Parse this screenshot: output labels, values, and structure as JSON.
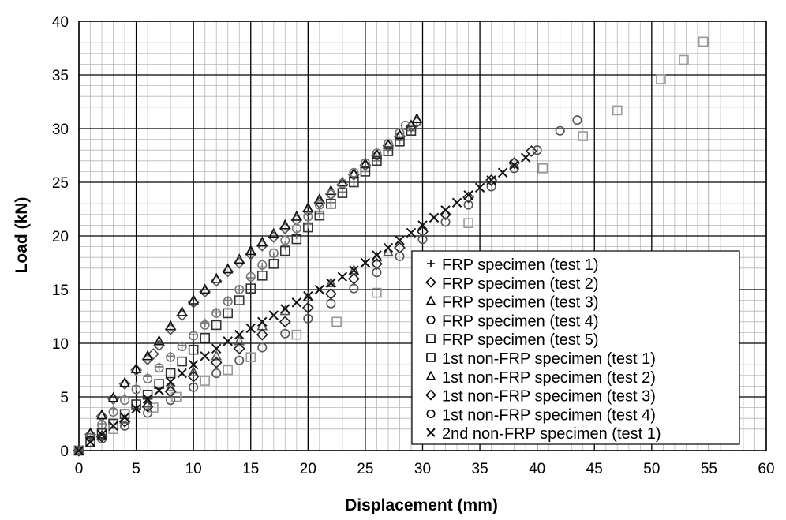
{
  "chart_data": {
    "type": "scatter",
    "title": "",
    "xlabel": "Displacement (mm)",
    "ylabel": "Load (kN)",
    "xlim": [
      0,
      60
    ],
    "ylim": [
      0,
      40
    ],
    "xticks": [
      0,
      5,
      10,
      15,
      20,
      25,
      30,
      35,
      40,
      45,
      50,
      55,
      60
    ],
    "yticks": [
      0,
      5,
      10,
      15,
      20,
      25,
      30,
      35,
      40
    ],
    "grid": "major and minor",
    "legend_position": "bottom-right",
    "series": [
      {
        "name": "FRP specimen (test 1)",
        "marker": "plus",
        "color": "#777777",
        "x": [
          0,
          1,
          2,
          3,
          4,
          5,
          6,
          7,
          8,
          9,
          10,
          11,
          12,
          13,
          14,
          15,
          16,
          17,
          18,
          19,
          20,
          21,
          22,
          23,
          24,
          25,
          26,
          27,
          28,
          29,
          29.5
        ],
        "y": [
          0,
          1.2,
          2.5,
          3.8,
          5.0,
          6.0,
          6.9,
          7.8,
          8.8,
          9.8,
          10.8,
          11.9,
          12.9,
          14.0,
          15.0,
          16.1,
          17.1,
          18.1,
          19.1,
          20.1,
          21.1,
          22.1,
          23.1,
          24.1,
          25.0,
          26.0,
          27.0,
          28.0,
          28.9,
          29.8,
          30.3
        ]
      },
      {
        "name": "FRP specimen (test 2)",
        "marker": "diamond",
        "color": "#555555",
        "x": [
          0,
          1,
          2,
          3,
          4,
          5,
          6,
          6.5,
          7,
          8,
          9,
          10,
          11,
          12,
          13,
          14,
          15,
          16,
          17,
          18,
          19,
          20,
          21,
          22,
          23,
          24,
          25,
          26,
          27,
          28,
          29,
          29.5
        ],
        "y": [
          0,
          1.5,
          3.2,
          4.8,
          6.2,
          7.5,
          8.5,
          9.0,
          9.8,
          11.3,
          12.6,
          13.8,
          14.8,
          15.8,
          16.7,
          17.5,
          18.3,
          19.1,
          19.9,
          20.7,
          21.5,
          22.3,
          23.1,
          23.9,
          24.8,
          25.7,
          26.6,
          27.5,
          28.4,
          29.3,
          30.2,
          30.6
        ]
      },
      {
        "name": "FRP specimen (test 3)",
        "marker": "triangle",
        "color": "#111111",
        "x": [
          0,
          1,
          2,
          3,
          4,
          5,
          6,
          7,
          8,
          9,
          10,
          11,
          12,
          13,
          14,
          15,
          16,
          17,
          18,
          19,
          20,
          21,
          22,
          23,
          24,
          25,
          26,
          27,
          28,
          29,
          29.5
        ],
        "y": [
          0,
          1.6,
          3.3,
          4.9,
          6.3,
          7.6,
          8.8,
          10.2,
          11.6,
          12.9,
          14.0,
          15.0,
          16.0,
          16.9,
          17.8,
          18.6,
          19.4,
          20.2,
          21.0,
          21.8,
          22.6,
          23.4,
          24.2,
          25.0,
          25.8,
          26.7,
          27.6,
          28.5,
          29.4,
          30.3,
          30.9
        ]
      },
      {
        "name": "FRP specimen (test 4)",
        "marker": "circle",
        "color": "#777777",
        "x": [
          0,
          1,
          2,
          3,
          4,
          5,
          6,
          7,
          8,
          9,
          10,
          11,
          12,
          13,
          14,
          15,
          16,
          17,
          18,
          19,
          20,
          21,
          22,
          23,
          24,
          25,
          26,
          27,
          28,
          28.5
        ],
        "y": [
          0,
          1.2,
          2.4,
          3.6,
          4.7,
          5.7,
          6.7,
          7.7,
          8.7,
          9.7,
          10.7,
          11.7,
          12.8,
          13.9,
          15.0,
          16.2,
          17.3,
          18.4,
          19.6,
          20.7,
          21.8,
          22.9,
          23.9,
          24.9,
          25.9,
          26.8,
          27.7,
          28.6,
          29.6,
          30.3
        ]
      },
      {
        "name": "FRP specimen (test 5)",
        "marker": "square",
        "color": "#333333",
        "x": [
          0,
          1,
          2,
          3,
          4,
          5,
          6,
          7,
          8,
          9,
          10,
          11,
          12,
          13,
          14,
          15,
          16,
          17,
          18,
          19,
          20,
          21,
          22,
          23,
          24,
          25,
          26,
          27,
          28,
          29
        ],
        "y": [
          0,
          0.8,
          1.6,
          2.5,
          3.4,
          4.3,
          5.2,
          6.2,
          7.2,
          8.3,
          9.4,
          10.5,
          11.7,
          12.8,
          14.0,
          15.1,
          16.3,
          17.4,
          18.6,
          19.7,
          20.8,
          21.9,
          23.0,
          24.0,
          25.0,
          26.0,
          27.0,
          27.9,
          28.8,
          29.8
        ]
      },
      {
        "name": "1st non-FRP specimen (test 1)",
        "marker": "square",
        "color": "#999999",
        "x": [
          0,
          3,
          6.5,
          8.5,
          11,
          13,
          15,
          19,
          22.5,
          26,
          30,
          34,
          40.5,
          44,
          47,
          50.8,
          52.8,
          54.5
        ],
        "y": [
          0,
          2.0,
          4.0,
          5.0,
          6.5,
          7.5,
          8.7,
          10.8,
          12.0,
          14.7,
          17.5,
          21.2,
          26.3,
          29.3,
          31.7,
          34.6,
          36.4,
          38.1
        ]
      },
      {
        "name": "1st non-FRP specimen (test 2)",
        "marker": "triangle",
        "color": "#555555",
        "x": [
          0,
          2,
          4,
          6,
          8,
          10,
          12,
          14,
          16,
          18,
          20,
          22,
          24,
          26,
          27
        ],
        "y": [
          0,
          1.4,
          2.9,
          4.4,
          5.9,
          7.3,
          8.8,
          10.2,
          11.6,
          13.0,
          14.3,
          15.6,
          16.8,
          18.0,
          18.5
        ]
      },
      {
        "name": "1st non-FRP specimen (test 3)",
        "marker": "diamond",
        "color": "#222222",
        "x": [
          0,
          2,
          4,
          6,
          8,
          10,
          12,
          14,
          16,
          18,
          20,
          22,
          24,
          26,
          28,
          30,
          32,
          34,
          36,
          38,
          39.5
        ],
        "y": [
          0,
          1.3,
          2.7,
          4.1,
          5.5,
          6.9,
          8.2,
          9.5,
          10.8,
          12.0,
          13.3,
          14.6,
          16.0,
          17.4,
          18.9,
          20.4,
          22.0,
          23.6,
          25.2,
          26.8,
          27.9
        ]
      },
      {
        "name": "1st non-FRP specimen (test 4)",
        "marker": "circle",
        "color": "#555555",
        "x": [
          0,
          2,
          4,
          6,
          8,
          10,
          12,
          14,
          16,
          18,
          20,
          22,
          24,
          26,
          28,
          30,
          32,
          34,
          36,
          38,
          40,
          42,
          43.5
        ],
        "y": [
          0,
          1.1,
          2.3,
          3.5,
          4.7,
          5.9,
          7.2,
          8.4,
          9.6,
          10.9,
          12.3,
          13.7,
          15.1,
          16.6,
          18.1,
          19.7,
          21.3,
          22.9,
          24.6,
          26.3,
          28.0,
          29.8,
          30.8
        ]
      },
      {
        "name": "2nd non-FRP specimen (test 1)",
        "marker": "cross",
        "color": "#111111",
        "x": [
          0,
          1,
          2,
          3,
          4,
          5,
          6,
          7,
          8,
          9,
          10,
          11,
          12,
          13,
          14,
          15,
          16,
          17,
          18,
          19,
          20,
          21,
          22,
          23,
          24,
          25,
          26,
          27,
          28,
          29,
          30,
          31,
          32,
          33,
          34,
          35,
          36,
          37,
          38,
          39
        ],
        "y": [
          0,
          0.8,
          1.5,
          2.3,
          3.1,
          3.9,
          4.8,
          5.6,
          6.4,
          7.2,
          8.0,
          8.8,
          9.5,
          10.2,
          10.8,
          11.4,
          12.0,
          12.6,
          13.2,
          13.8,
          14.4,
          15.0,
          15.6,
          16.2,
          16.8,
          17.5,
          18.2,
          18.9,
          19.6,
          20.3,
          21.0,
          21.7,
          22.4,
          23.1,
          23.8,
          24.5,
          25.2,
          25.9,
          26.6,
          27.3
        ]
      }
    ]
  }
}
